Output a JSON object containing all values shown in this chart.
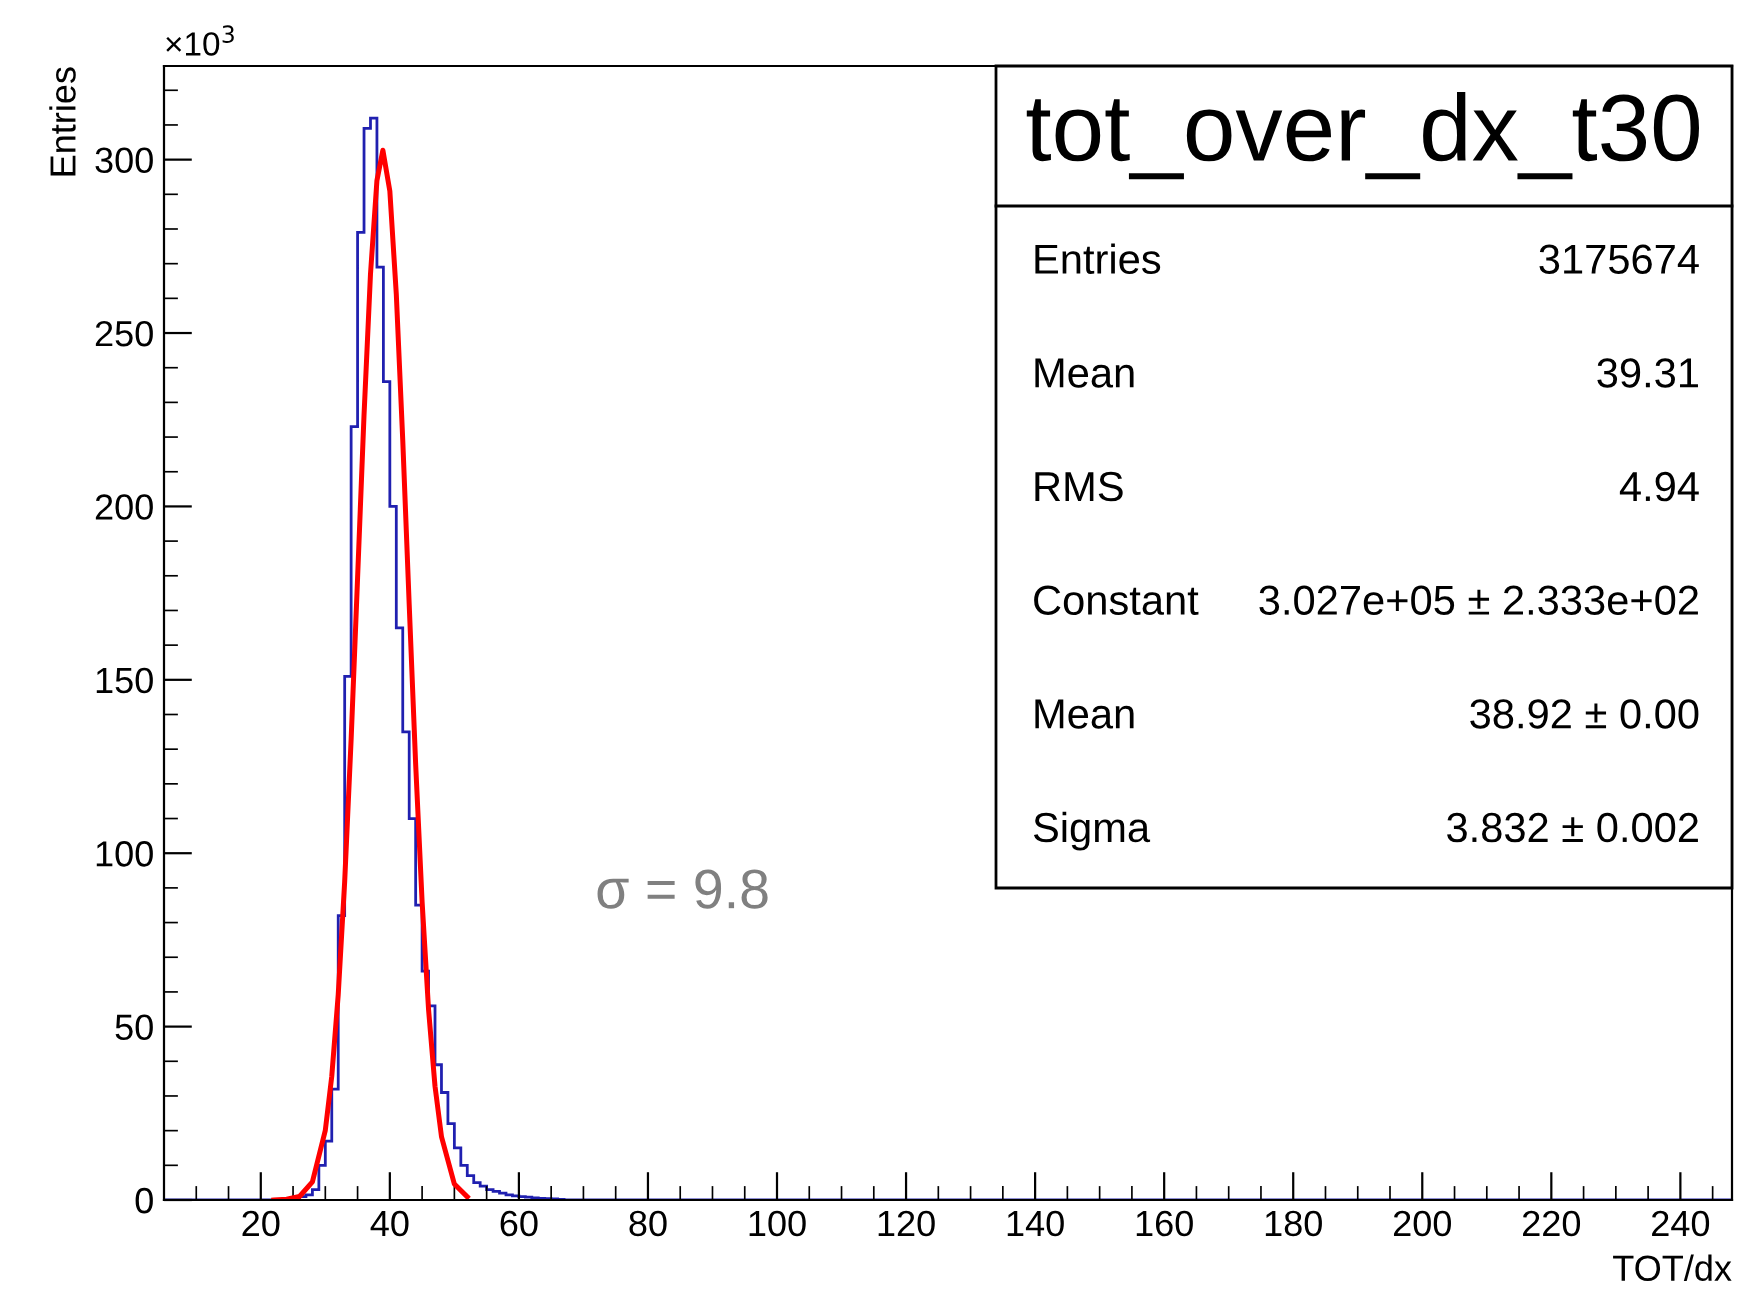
{
  "chart_data": {
    "type": "histogram",
    "title": "tot_over_dx_t30",
    "xlabel": "TOT/dx",
    "ylabel": "Entries",
    "xlim": [
      5,
      248
    ],
    "xticks": [
      20,
      40,
      60,
      80,
      100,
      120,
      140,
      160,
      180,
      200,
      220,
      240
    ],
    "ylim": [
      0,
      327
    ],
    "yticks": [
      0,
      50,
      100,
      150,
      200,
      250,
      300
    ],
    "grid": false,
    "legend": false,
    "series": [
      {
        "color": "#2020b0",
        "bins": [
          5,
          22,
          23,
          24,
          25,
          26,
          27,
          28,
          29,
          30,
          31,
          32,
          33,
          34,
          35,
          36,
          37,
          38,
          39,
          40,
          41,
          42,
          43,
          44,
          45,
          46,
          47,
          48,
          49,
          50,
          51,
          52,
          53,
          54,
          55,
          56,
          57,
          58,
          59,
          60,
          61,
          62,
          63,
          64,
          65,
          66,
          67,
          248
        ],
        "values": [
          0,
          0.1,
          0.2,
          0.3,
          0.5,
          1,
          1.5,
          3,
          10,
          17,
          32,
          82,
          151,
          223,
          279,
          309,
          312,
          269,
          236,
          200,
          165,
          135,
          110,
          85,
          66,
          56,
          39,
          31,
          22,
          15,
          10,
          7,
          5,
          4,
          3,
          2.5,
          2,
          1.5,
          1.2,
          1,
          0.8,
          0.6,
          0.5,
          0.4,
          0.3,
          0.2,
          0
        ]
      },
      {
        "type": "line",
        "color": "#ff0000",
        "x": [
          22,
          24,
          26,
          28,
          30,
          31,
          32,
          33,
          34,
          35,
          36,
          37,
          38,
          38.92,
          40,
          41,
          42,
          43,
          44,
          45,
          46,
          47,
          48,
          50,
          52
        ],
        "values": [
          0,
          0.2,
          1,
          5.2,
          20.1,
          35.7,
          59.2,
          91.8,
          132.8,
          179.4,
          226.4,
          267,
          294,
          302.7,
          290.9,
          261.2,
          219.1,
          171.7,
          125.7,
          86,
          54.9,
          32.8,
          18.3,
          4.6,
          0.9
        ]
      }
    ],
    "annotations": [
      "×10$^{3}$",
      "σ = 9.8",
      "Entries",
      "3175674",
      "Mean",
      "39.31",
      "RMS",
      "4.94",
      "Constant",
      "3.027e+05 ± 2.333e+02",
      "Mean",
      "38.92 ± 0.00",
      "Sigma",
      "3.832 ± 0.002"
    ]
  }
}
